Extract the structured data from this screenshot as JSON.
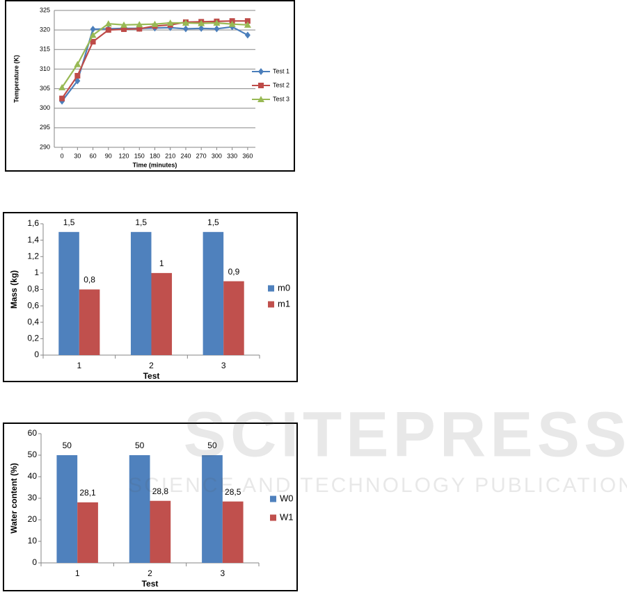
{
  "chart_data": [
    {
      "type": "line",
      "ylabel": "Temperature (K)",
      "xlabel": "Time (minutes)",
      "x": [
        0,
        30,
        60,
        90,
        120,
        150,
        180,
        210,
        240,
        270,
        300,
        330,
        360
      ],
      "xlim": [
        -15,
        375
      ],
      "xticks": [
        0,
        30,
        60,
        90,
        120,
        150,
        180,
        210,
        240,
        270,
        300,
        330,
        360
      ],
      "ylim": [
        290,
        325
      ],
      "yticks": [
        290,
        295,
        300,
        305,
        310,
        315,
        320,
        325
      ],
      "grid": true,
      "legend": "right",
      "series": [
        {
          "name": "Test 1",
          "color": "#4a7ebb",
          "marker": "diamond",
          "values": [
            301.8,
            307,
            320.2,
            320.3,
            320.4,
            320.4,
            320.5,
            320.6,
            320.3,
            320.4,
            320.3,
            320.8,
            318.7
          ]
        },
        {
          "name": "Test 2",
          "color": "#be4b48",
          "marker": "square",
          "values": [
            302.5,
            308.3,
            317,
            320,
            320.2,
            320.3,
            321,
            321.3,
            322,
            322.1,
            322.2,
            322.3,
            322.3
          ]
        },
        {
          "name": "Test 3",
          "color": "#98b954",
          "marker": "triangle",
          "values": [
            305.3,
            311.2,
            318.7,
            321.6,
            321.3,
            321.4,
            321.5,
            321.8,
            321.8,
            321.7,
            321.8,
            321.5,
            321.3
          ]
        }
      ]
    },
    {
      "type": "bar",
      "ylabel": "Mass (kg)",
      "xlabel": "Test",
      "categories": [
        "1",
        "2",
        "3"
      ],
      "ylim": [
        0,
        1.6
      ],
      "yticks": [
        0,
        {
          "value": 0.2,
          "label": "0,2"
        },
        {
          "value": 0.4,
          "label": "0,4"
        },
        {
          "value": 0.6,
          "label": "0,6"
        },
        {
          "value": 0.8,
          "label": "0,8"
        },
        1,
        {
          "value": 1.2,
          "label": "1,2"
        },
        {
          "value": 1.4,
          "label": "1,4"
        },
        {
          "value": 1.6,
          "label": "1,6"
        }
      ],
      "grid": false,
      "legend": "right",
      "series": [
        {
          "name": "m0",
          "color": "#4f81bd",
          "values": [
            1.5,
            1.5,
            1.5
          ],
          "value_labels": [
            "1,5",
            "1,5",
            "1,5"
          ]
        },
        {
          "name": "m1",
          "color": "#c0504d",
          "values": [
            0.8,
            1,
            0.9
          ],
          "value_labels": [
            "0,8",
            "1",
            "0,9"
          ]
        }
      ]
    },
    {
      "type": "bar",
      "ylabel": "Water content (%)",
      "xlabel": "Test",
      "categories": [
        "1",
        "2",
        "3"
      ],
      "ylim": [
        0,
        60
      ],
      "yticks": [
        0,
        10,
        20,
        30,
        40,
        50,
        60
      ],
      "grid": false,
      "legend": "right",
      "series": [
        {
          "name": "W0",
          "color": "#4f81bd",
          "values": [
            50,
            50,
            50
          ],
          "value_labels": [
            "50",
            "50",
            "50"
          ]
        },
        {
          "name": "W1",
          "color": "#c0504d",
          "values": [
            28.1,
            28.8,
            28.5
          ],
          "value_labels": [
            "28,1",
            "28,8",
            "28,5"
          ]
        }
      ]
    }
  ],
  "watermark": {
    "title": "SCITEPRESS",
    "subtitle": "SCIENCE AND TECHNOLOGY PUBLICATIONS"
  }
}
